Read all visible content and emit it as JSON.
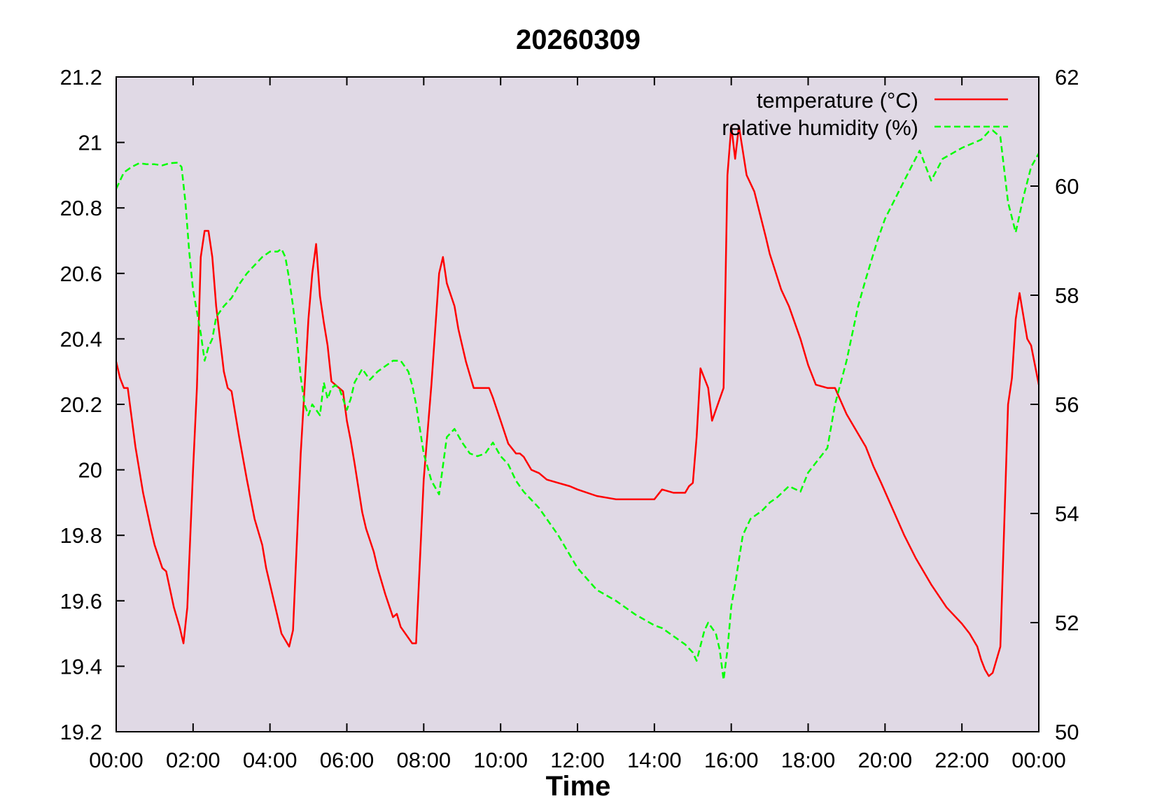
{
  "chart_data": {
    "type": "line",
    "title": "20260309",
    "xlabel": "Time",
    "ylabel": "",
    "y2label": "",
    "x_ticks": [
      "00:00",
      "02:00",
      "04:00",
      "06:00",
      "08:00",
      "10:00",
      "12:00",
      "14:00",
      "16:00",
      "18:00",
      "20:00",
      "22:00",
      "00:00"
    ],
    "x_range_hours": [
      0,
      24
    ],
    "y_ticks": [
      "19.2",
      "19.4",
      "19.6",
      "19.8",
      "20",
      "20.2",
      "20.4",
      "20.6",
      "20.8",
      "21",
      "21.2"
    ],
    "ylim": [
      19.2,
      21.2
    ],
    "y2_ticks": [
      "50",
      "52",
      "54",
      "56",
      "58",
      "60",
      "62"
    ],
    "y2lim": [
      50,
      62
    ],
    "grid": false,
    "legend_position": "top-right",
    "colors": {
      "plot_background": "#e0d9e5",
      "temperature": "#ff0000",
      "humidity": "#00ff00"
    },
    "series": [
      {
        "name": "temperature (°C)",
        "axis": "left",
        "style": "solid",
        "x": [
          0,
          0.1,
          0.2,
          0.3,
          0.5,
          0.7,
          0.9,
          1.0,
          1.2,
          1.3,
          1.5,
          1.65,
          1.75,
          1.85,
          2.0,
          2.1,
          2.2,
          2.3,
          2.4,
          2.5,
          2.6,
          2.7,
          2.8,
          2.9,
          3.0,
          3.2,
          3.4,
          3.6,
          3.8,
          3.9,
          4.0,
          4.2,
          4.3,
          4.5,
          4.6,
          4.8,
          4.9,
          5.0,
          5.1,
          5.2,
          5.3,
          5.4,
          5.5,
          5.6,
          5.7,
          5.9,
          6.0,
          6.1,
          6.2,
          6.4,
          6.5,
          6.7,
          6.8,
          7.0,
          7.2,
          7.3,
          7.4,
          7.7,
          7.8,
          8.0,
          8.2,
          8.4,
          8.5,
          8.6,
          8.8,
          8.9,
          9.1,
          9.3,
          9.5,
          9.7,
          9.8,
          10.0,
          10.2,
          10.4,
          10.5,
          10.6,
          10.8,
          11.0,
          11.2,
          11.5,
          11.8,
          12.0,
          12.5,
          13.0,
          13.5,
          14.0,
          14.2,
          14.5,
          14.8,
          14.9,
          15.0,
          15.1,
          15.2,
          15.4,
          15.5,
          15.8,
          15.9,
          16.0,
          16.1,
          16.2,
          16.4,
          16.6,
          16.9,
          17.0,
          17.3,
          17.5,
          17.8,
          18.0,
          18.2,
          18.5,
          18.7,
          19.0,
          19.2,
          19.5,
          19.7,
          19.9,
          20.2,
          20.5,
          20.8,
          21.2,
          21.6,
          22.0,
          22.2,
          22.4,
          22.5,
          22.6,
          22.7,
          22.8,
          23.0,
          23.2,
          23.3,
          23.4,
          23.5,
          23.7,
          23.8,
          24.0
        ],
        "y": [
          20.33,
          20.28,
          20.25,
          20.25,
          20.07,
          19.93,
          19.82,
          19.77,
          19.7,
          19.69,
          19.58,
          19.52,
          19.47,
          19.58,
          20.0,
          20.25,
          20.65,
          20.73,
          20.73,
          20.65,
          20.5,
          20.4,
          20.3,
          20.25,
          20.24,
          20.1,
          19.97,
          19.85,
          19.77,
          19.7,
          19.65,
          19.55,
          19.5,
          19.46,
          19.51,
          20.05,
          20.25,
          20.46,
          20.6,
          20.69,
          20.53,
          20.45,
          20.38,
          20.27,
          20.26,
          20.24,
          20.15,
          20.09,
          20.02,
          19.87,
          19.82,
          19.75,
          19.7,
          19.62,
          19.55,
          19.56,
          19.52,
          19.47,
          19.47,
          19.97,
          20.26,
          20.6,
          20.65,
          20.57,
          20.5,
          20.43,
          20.33,
          20.25,
          20.25,
          20.25,
          20.22,
          20.15,
          20.08,
          20.05,
          20.05,
          20.04,
          20.0,
          19.99,
          19.97,
          19.96,
          19.95,
          19.94,
          19.92,
          19.91,
          19.91,
          19.91,
          19.94,
          19.93,
          19.93,
          19.95,
          19.96,
          20.1,
          20.31,
          20.25,
          20.15,
          20.25,
          20.9,
          21.05,
          20.95,
          21.05,
          20.9,
          20.85,
          20.71,
          20.66,
          20.55,
          20.5,
          20.4,
          20.32,
          20.26,
          20.25,
          20.25,
          20.17,
          20.13,
          20.07,
          20.01,
          19.96,
          19.88,
          19.8,
          19.73,
          19.65,
          19.58,
          19.53,
          19.5,
          19.46,
          19.42,
          19.39,
          19.37,
          19.38,
          19.46,
          20.2,
          20.28,
          20.46,
          20.54,
          20.4,
          20.38,
          20.26
        ]
      },
      {
        "name": "relative humidity (%)",
        "axis": "right",
        "style": "dashed",
        "x": [
          0,
          0.1,
          0.2,
          0.4,
          0.6,
          0.8,
          1.0,
          1.2,
          1.4,
          1.6,
          1.7,
          1.8,
          1.9,
          2.0,
          2.1,
          2.2,
          2.3,
          2.4,
          2.5,
          2.6,
          2.8,
          3.0,
          3.2,
          3.4,
          3.6,
          3.8,
          4.0,
          4.2,
          4.3,
          4.4,
          4.5,
          4.6,
          4.7,
          4.8,
          4.9,
          5.0,
          5.1,
          5.3,
          5.4,
          5.5,
          5.6,
          5.7,
          5.8,
          6.0,
          6.1,
          6.2,
          6.4,
          6.6,
          6.8,
          7.0,
          7.2,
          7.4,
          7.6,
          7.7,
          7.8,
          8.0,
          8.2,
          8.4,
          8.6,
          8.8,
          9.0,
          9.2,
          9.4,
          9.6,
          9.8,
          10.0,
          10.2,
          10.4,
          10.6,
          10.8,
          11.0,
          11.5,
          12.0,
          12.5,
          13.0,
          13.5,
          14.0,
          14.2,
          14.5,
          14.8,
          15.0,
          15.1,
          15.3,
          15.4,
          15.6,
          15.7,
          15.8,
          15.9,
          16.0,
          16.1,
          16.3,
          16.5,
          16.8,
          17.0,
          17.2,
          17.5,
          17.8,
          18.0,
          18.5,
          18.7,
          19.0,
          19.3,
          19.5,
          19.8,
          20.0,
          20.5,
          20.9,
          21.2,
          21.5,
          22.0,
          22.5,
          22.7,
          22.8,
          23.0,
          23.2,
          23.4,
          23.6,
          23.8,
          24.0
        ],
        "y": [
          59.95,
          60.1,
          60.25,
          60.35,
          60.42,
          60.4,
          60.4,
          60.38,
          60.42,
          60.43,
          60.35,
          59.7,
          58.8,
          58.1,
          57.7,
          57.3,
          56.8,
          57.05,
          57.2,
          57.6,
          57.8,
          57.95,
          58.2,
          58.4,
          58.55,
          58.7,
          58.8,
          58.8,
          58.85,
          58.7,
          58.3,
          57.8,
          57.2,
          56.5,
          56.0,
          55.8,
          56.0,
          55.8,
          56.4,
          56.1,
          56.3,
          56.35,
          56.3,
          55.9,
          56.1,
          56.4,
          56.65,
          56.45,
          56.6,
          56.7,
          56.8,
          56.8,
          56.6,
          56.35,
          56.0,
          55.1,
          54.6,
          54.35,
          55.4,
          55.55,
          55.3,
          55.1,
          55.05,
          55.1,
          55.3,
          55.05,
          54.9,
          54.6,
          54.4,
          54.25,
          54.1,
          53.6,
          53.0,
          52.6,
          52.4,
          52.15,
          51.95,
          51.9,
          51.75,
          51.6,
          51.45,
          51.3,
          51.85,
          52.0,
          51.8,
          51.5,
          50.95,
          51.5,
          52.3,
          52.7,
          53.6,
          53.9,
          54.05,
          54.2,
          54.3,
          54.5,
          54.4,
          54.75,
          55.2,
          56.0,
          56.8,
          57.8,
          58.3,
          59.0,
          59.4,
          60.1,
          60.65,
          60.1,
          60.5,
          60.7,
          60.85,
          61.0,
          61.02,
          60.9,
          59.7,
          59.15,
          59.8,
          60.35,
          60.6
        ]
      }
    ]
  }
}
